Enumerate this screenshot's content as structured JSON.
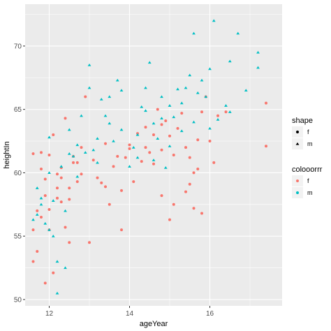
{
  "chart_data": {
    "type": "scatter",
    "xlabel": "ageYear",
    "ylabel": "heightIn",
    "xlim": [
      11.4,
      17.8
    ],
    "ylim": [
      49.5,
      73.3
    ],
    "x_ticks": [
      12,
      14,
      16
    ],
    "y_ticks": [
      50,
      55,
      60,
      65,
      70
    ],
    "x_tick_labels": [
      "12",
      "14",
      "16"
    ],
    "y_tick_labels": [
      "50",
      "55",
      "60",
      "65",
      "70"
    ],
    "grid": true,
    "legend_placement": "right",
    "legends": {
      "shape": {
        "title": "shape",
        "entries": [
          {
            "label": "f",
            "shape": "circle"
          },
          {
            "label": "m",
            "shape": "triangle"
          }
        ]
      },
      "color": {
        "title": "colooorrr",
        "entries": [
          {
            "label": "f",
            "color": "#F8766D"
          },
          {
            "label": "m",
            "color": "#00BFC4"
          }
        ]
      }
    },
    "colors": {
      "panel_bg": "#EBEBEB",
      "grid": "#FFFFFF",
      "f": "#F8766D",
      "m": "#00BFC4"
    },
    "series": [
      {
        "name": "f",
        "shape": "circle",
        "color": "#F8766D",
        "points": [
          [
            11.6,
            53
          ],
          [
            11.6,
            55.5
          ],
          [
            11.7,
            53.8
          ],
          [
            11.6,
            61.5
          ],
          [
            11.8,
            60.3
          ],
          [
            11.8,
            61.6
          ],
          [
            11.9,
            59.5
          ],
          [
            12.0,
            61.4
          ],
          [
            11.9,
            58.2
          ],
          [
            12.0,
            57.1
          ],
          [
            11.8,
            56.5
          ],
          [
            11.7,
            57.0
          ],
          [
            11.9,
            51.3
          ],
          [
            12.1,
            52.1
          ],
          [
            12.0,
            55.5
          ],
          [
            12.2,
            59.9
          ],
          [
            12.2,
            58.8
          ],
          [
            12.3,
            59.6
          ],
          [
            12.3,
            60.4
          ],
          [
            12.4,
            64.3
          ],
          [
            12.3,
            57.7
          ],
          [
            12.5,
            57.9
          ],
          [
            12.5,
            58.8
          ],
          [
            12.6,
            60.8
          ],
          [
            12.6,
            61.3
          ],
          [
            12.7,
            59.3
          ],
          [
            12.7,
            60.8
          ],
          [
            12.8,
            62.0
          ],
          [
            12.8,
            59.9
          ],
          [
            12.5,
            54.5
          ],
          [
            12.4,
            55.7
          ],
          [
            12.9,
            66.0
          ],
          [
            13.0,
            54.5
          ],
          [
            13.1,
            61.0
          ],
          [
            13.2,
            59.6
          ],
          [
            13.3,
            59.2
          ],
          [
            13.4,
            58.9
          ],
          [
            13.4,
            62.3
          ],
          [
            13.6,
            60.5
          ],
          [
            13.7,
            61.3
          ],
          [
            13.8,
            55.5
          ],
          [
            13.8,
            58.6
          ],
          [
            13.9,
            61.2
          ],
          [
            14.0,
            61.9
          ],
          [
            14.0,
            62.2
          ],
          [
            14.1,
            59.3
          ],
          [
            14.2,
            63.1
          ],
          [
            14.3,
            60.9
          ],
          [
            14.4,
            63.6
          ],
          [
            14.4,
            62.0
          ],
          [
            14.5,
            61.6
          ],
          [
            14.6,
            60.7
          ],
          [
            14.6,
            63.0
          ],
          [
            14.7,
            65.0
          ],
          [
            14.8,
            61.8
          ],
          [
            14.8,
            58.2
          ],
          [
            14.9,
            64.1
          ],
          [
            15.0,
            62.9
          ],
          [
            15.0,
            56.3
          ],
          [
            15.1,
            61.4
          ],
          [
            15.2,
            63.5
          ],
          [
            15.3,
            64.7
          ],
          [
            15.4,
            62.0
          ],
          [
            15.4,
            58.5
          ],
          [
            15.5,
            61.2
          ],
          [
            15.5,
            59.1
          ],
          [
            15.6,
            60.0
          ],
          [
            15.7,
            62.6
          ],
          [
            15.7,
            60.3
          ],
          [
            15.8,
            56.8
          ],
          [
            15.8,
            64.8
          ],
          [
            16.0,
            62.5
          ],
          [
            16.1,
            60.8
          ],
          [
            16.2,
            64.5
          ],
          [
            16.4,
            64.8
          ],
          [
            17.4,
            65.5
          ],
          [
            17.4,
            62.1
          ],
          [
            15.1,
            57.5
          ],
          [
            15.6,
            57.2
          ],
          [
            12.1,
            63.0
          ],
          [
            12.2,
            58.0
          ],
          [
            13.5,
            57.5
          ],
          [
            14.8,
            63.8
          ],
          [
            15.9,
            66.0
          ]
        ]
      },
      {
        "name": "m",
        "shape": "triangle",
        "color": "#00BFC4",
        "points": [
          [
            11.6,
            56.3
          ],
          [
            11.7,
            58.8
          ],
          [
            11.7,
            56.7
          ],
          [
            11.8,
            57.5
          ],
          [
            11.9,
            56.0
          ],
          [
            12.0,
            62.8
          ],
          [
            12.0,
            60.0
          ],
          [
            12.1,
            55.0
          ],
          [
            12.1,
            57.8
          ],
          [
            12.2,
            50.5
          ],
          [
            12.2,
            53.0
          ],
          [
            12.3,
            60.5
          ],
          [
            12.4,
            52.5
          ],
          [
            12.4,
            57.0
          ],
          [
            12.5,
            63.4
          ],
          [
            12.6,
            61.3
          ],
          [
            12.7,
            59.7
          ],
          [
            12.7,
            62.2
          ],
          [
            12.8,
            64.5
          ],
          [
            12.9,
            61.6
          ],
          [
            13.0,
            68.5
          ],
          [
            13.0,
            66.7
          ],
          [
            13.1,
            61.8
          ],
          [
            13.2,
            60.8
          ],
          [
            13.3,
            65.8
          ],
          [
            13.4,
            64.5
          ],
          [
            13.5,
            66.0
          ],
          [
            13.5,
            63.9
          ],
          [
            13.6,
            62.5
          ],
          [
            13.7,
            67.3
          ],
          [
            13.8,
            66.5
          ],
          [
            13.8,
            63.4
          ],
          [
            14.0,
            60.5
          ],
          [
            14.1,
            62.0
          ],
          [
            14.2,
            63.0
          ],
          [
            14.3,
            65.2
          ],
          [
            14.4,
            64.9
          ],
          [
            14.4,
            66.7
          ],
          [
            14.5,
            68.7
          ],
          [
            14.6,
            63.9
          ],
          [
            14.6,
            61.0
          ],
          [
            14.7,
            62.7
          ],
          [
            14.8,
            66.0
          ],
          [
            14.8,
            64.3
          ],
          [
            14.9,
            60.4
          ],
          [
            15.0,
            62.1
          ],
          [
            15.1,
            64.4
          ],
          [
            15.2,
            66.6
          ],
          [
            15.3,
            63.3
          ],
          [
            15.3,
            65.5
          ],
          [
            15.4,
            66.7
          ],
          [
            15.5,
            67.7
          ],
          [
            15.6,
            64.0
          ],
          [
            15.6,
            71.0
          ],
          [
            15.7,
            66.3
          ],
          [
            15.8,
            67.3
          ],
          [
            15.9,
            66.0
          ],
          [
            16.0,
            63.5
          ],
          [
            16.0,
            68.2
          ],
          [
            16.1,
            72.0
          ],
          [
            16.2,
            64.2
          ],
          [
            16.4,
            65.3
          ],
          [
            16.5,
            64.8
          ],
          [
            16.7,
            71.0
          ],
          [
            16.9,
            66.5
          ],
          [
            17.2,
            69.5
          ],
          [
            17.2,
            68.3
          ],
          [
            12.5,
            61.5
          ],
          [
            13.2,
            62.7
          ],
          [
            15.0,
            65.3
          ],
          [
            11.8,
            58.0
          ],
          [
            12.0,
            55.5
          ],
          [
            14.2,
            61.2
          ],
          [
            16.5,
            68.8
          ]
        ]
      }
    ]
  }
}
